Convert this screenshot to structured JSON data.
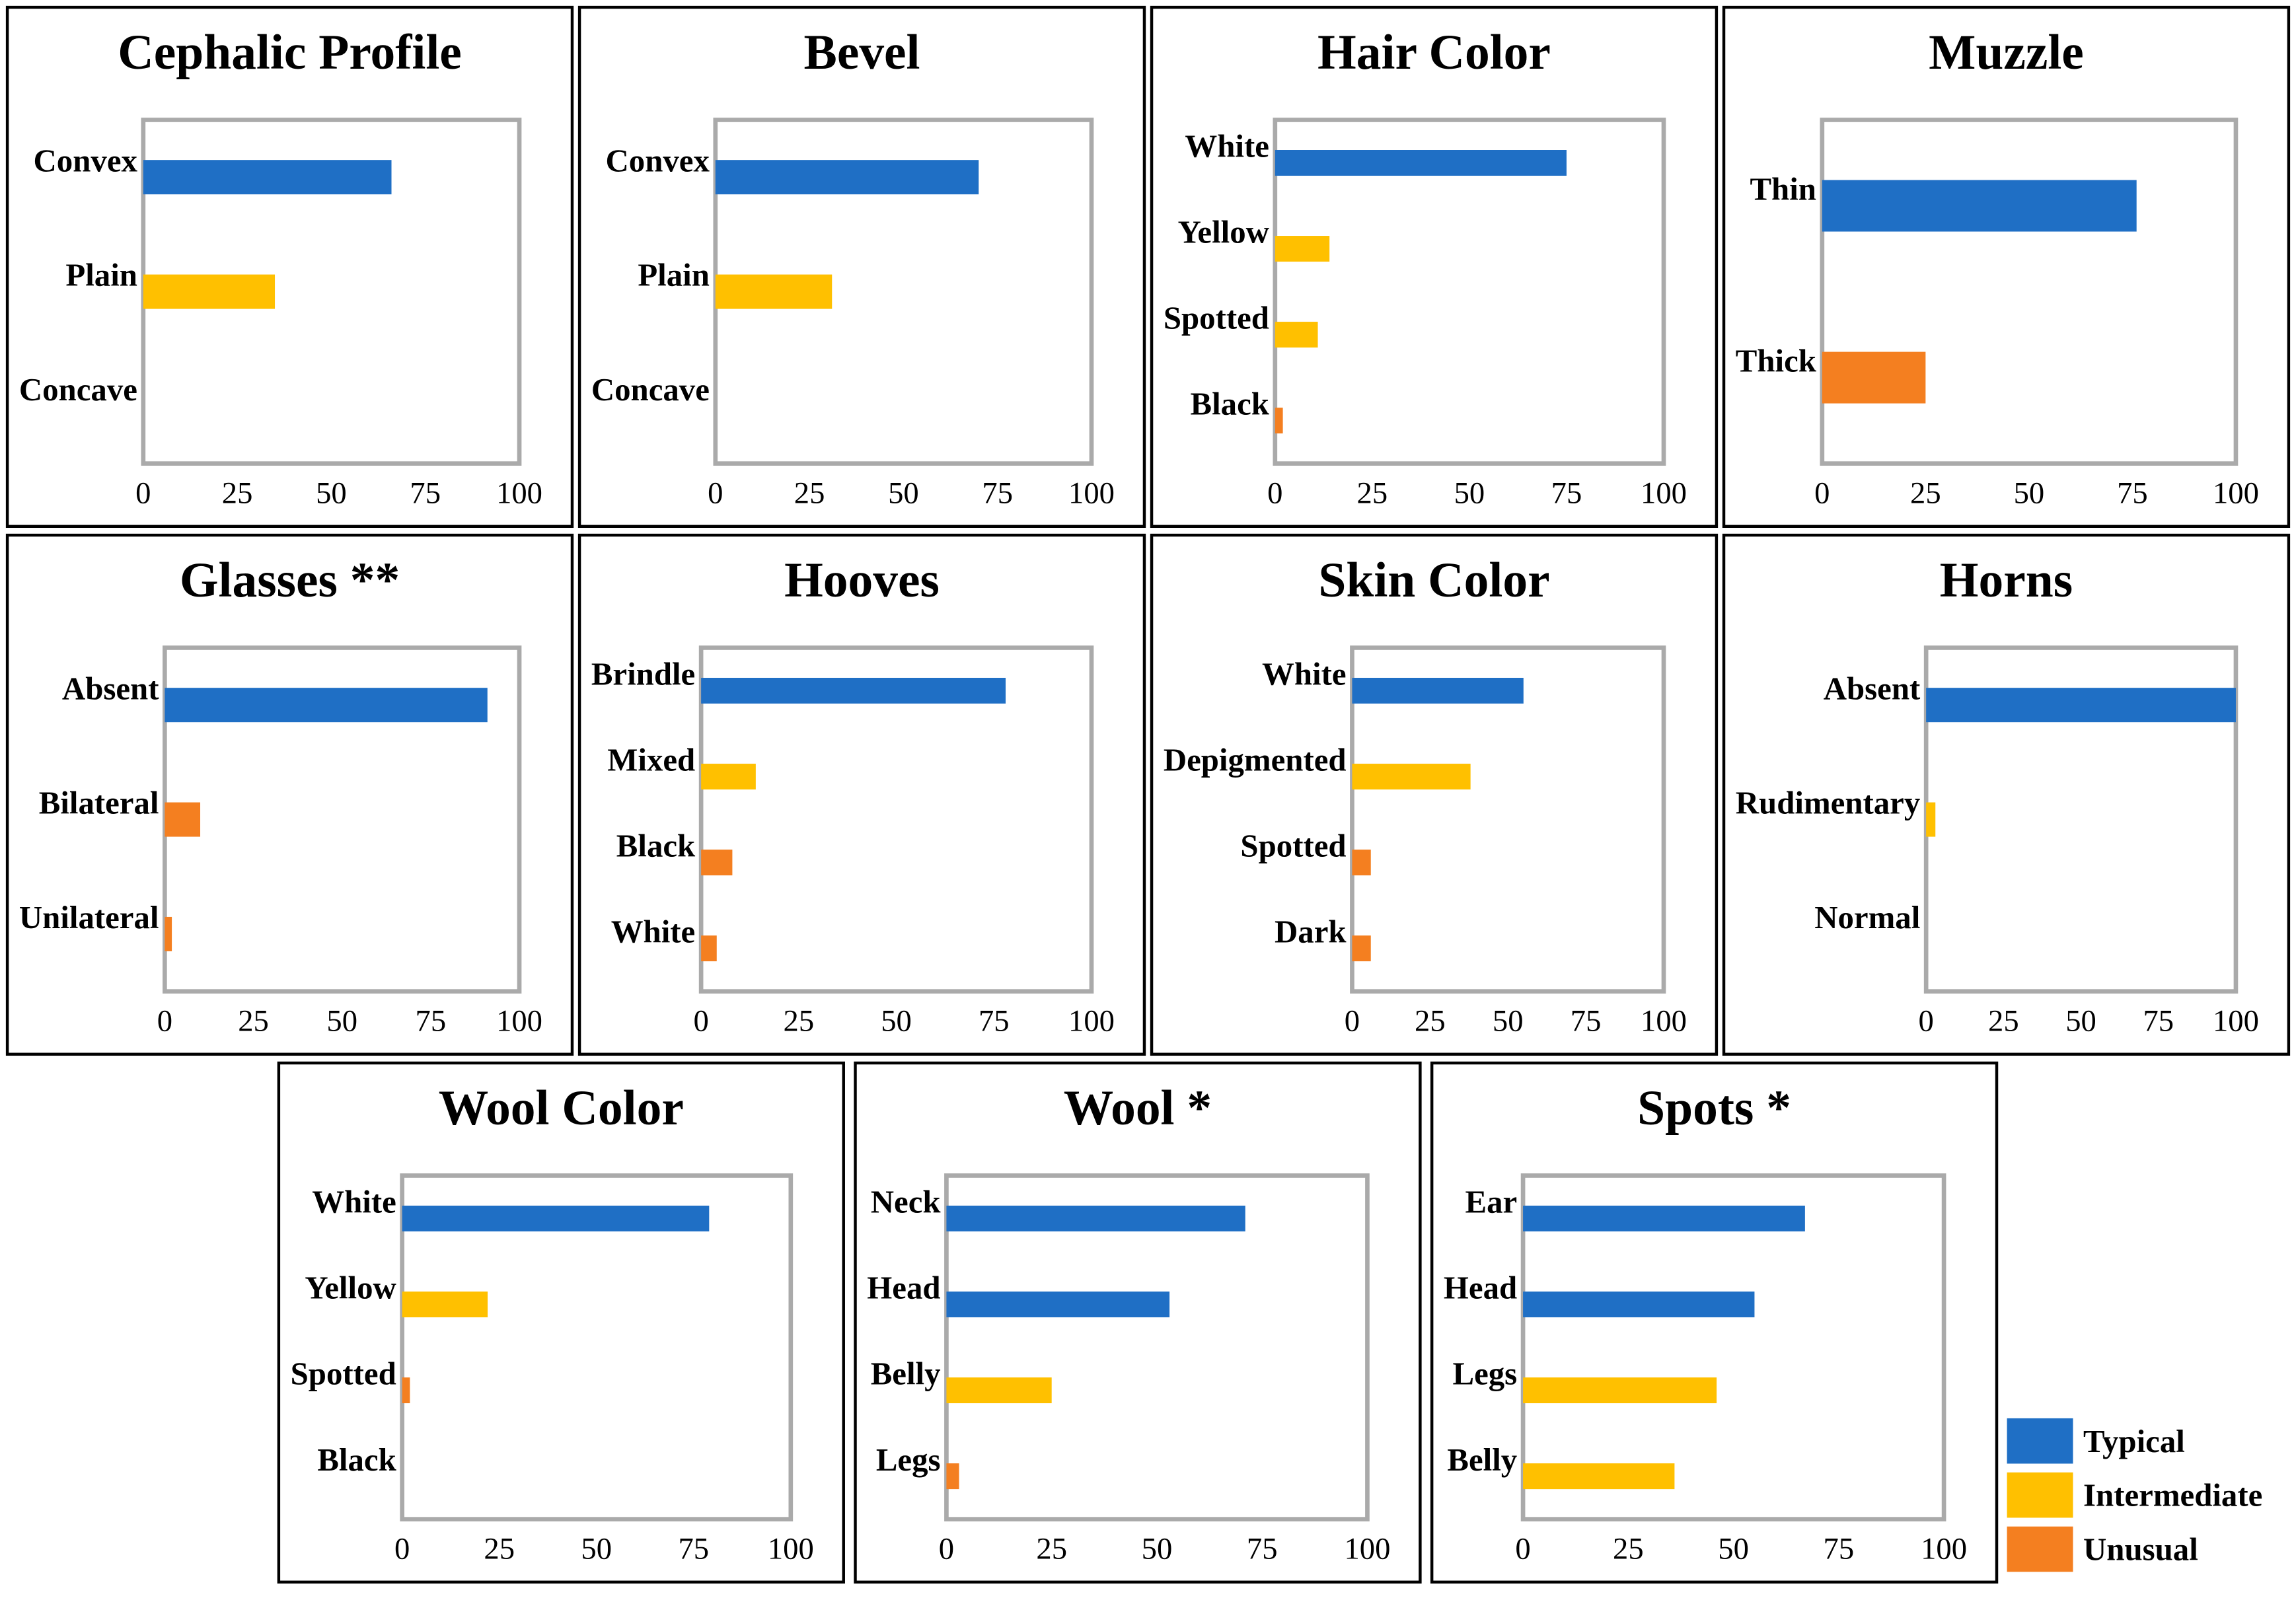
{
  "chart_data": [
    {
      "type": "bar",
      "title": "Cephalic Profile",
      "categories": [
        "Convex",
        "Plain",
        "Concave"
      ],
      "values": [
        66,
        35,
        0
      ],
      "colors": [
        "#1f6fc5",
        "#ffc000",
        "#f47f20"
      ],
      "xlim": [
        0,
        100
      ],
      "xticks": [
        0,
        25,
        50,
        75,
        100
      ]
    },
    {
      "type": "bar",
      "title": "Bevel",
      "categories": [
        "Convex",
        "Plain",
        "Concave"
      ],
      "values": [
        70,
        31,
        0
      ],
      "colors": [
        "#1f6fc5",
        "#ffc000",
        "#f47f20"
      ],
      "xlim": [
        0,
        100
      ],
      "xticks": [
        0,
        25,
        50,
        75,
        100
      ]
    },
    {
      "type": "bar",
      "title": "Hair Color",
      "categories": [
        "White",
        "Yellow",
        "Spotted",
        "Black"
      ],
      "values": [
        75,
        14,
        11,
        2
      ],
      "colors": [
        "#1f6fc5",
        "#ffc000",
        "#ffc000",
        "#f47f20"
      ],
      "xlim": [
        0,
        100
      ],
      "xticks": [
        0,
        25,
        50,
        75,
        100
      ]
    },
    {
      "type": "bar",
      "title": "Muzzle",
      "categories": [
        "Thin",
        "Thick"
      ],
      "values": [
        76,
        25
      ],
      "colors": [
        "#1f6fc5",
        "#f47f20"
      ],
      "xlim": [
        0,
        100
      ],
      "xticks": [
        0,
        25,
        50,
        75,
        100
      ]
    },
    {
      "type": "bar",
      "title": "Glasses **",
      "categories": [
        "Absent",
        "Bilateral",
        "Unilateral"
      ],
      "values": [
        91,
        10,
        2
      ],
      "colors": [
        "#1f6fc5",
        "#f47f20",
        "#f47f20"
      ],
      "xlim": [
        0,
        100
      ],
      "xticks": [
        0,
        25,
        50,
        75,
        100
      ]
    },
    {
      "type": "bar",
      "title": "Hooves",
      "categories": [
        "Brindle",
        "Mixed",
        "Black",
        "White"
      ],
      "values": [
        78,
        14,
        8,
        4
      ],
      "colors": [
        "#1f6fc5",
        "#ffc000",
        "#f47f20",
        "#f47f20"
      ],
      "xlim": [
        0,
        100
      ],
      "xticks": [
        0,
        25,
        50,
        75,
        100
      ]
    },
    {
      "type": "bar",
      "title": "Skin Color",
      "categories": [
        "White",
        "Depigmented",
        "Spotted",
        "Dark"
      ],
      "values": [
        55,
        38,
        6,
        6
      ],
      "colors": [
        "#1f6fc5",
        "#ffc000",
        "#f47f20",
        "#f47f20"
      ],
      "xlim": [
        0,
        100
      ],
      "xticks": [
        0,
        25,
        50,
        75,
        100
      ]
    },
    {
      "type": "bar",
      "title": "Horns",
      "categories": [
        "Absent",
        "Rudimentary",
        "Normal"
      ],
      "values": [
        100,
        3,
        0
      ],
      "colors": [
        "#1f6fc5",
        "#ffc000",
        "#f47f20"
      ],
      "xlim": [
        0,
        100
      ],
      "xticks": [
        0,
        25,
        50,
        75,
        100
      ]
    },
    {
      "type": "bar",
      "title": "Wool Color",
      "categories": [
        "White",
        "Yellow",
        "Spotted",
        "Black"
      ],
      "values": [
        79,
        22,
        2,
        0
      ],
      "colors": [
        "#1f6fc5",
        "#ffc000",
        "#f47f20",
        "#f47f20"
      ],
      "xlim": [
        0,
        100
      ],
      "xticks": [
        0,
        25,
        50,
        75,
        100
      ]
    },
    {
      "type": "bar",
      "title": "Wool *",
      "categories": [
        "Neck",
        "Head",
        "Belly",
        "Legs"
      ],
      "values": [
        71,
        53,
        25,
        3
      ],
      "colors": [
        "#1f6fc5",
        "#1f6fc5",
        "#ffc000",
        "#f47f20"
      ],
      "xlim": [
        0,
        100
      ],
      "xticks": [
        0,
        25,
        50,
        75,
        100
      ]
    },
    {
      "type": "bar",
      "title": "Spots *",
      "categories": [
        "Ear",
        "Head",
        "Legs",
        "Belly"
      ],
      "values": [
        67,
        55,
        46,
        36
      ],
      "colors": [
        "#1f6fc5",
        "#1f6fc5",
        "#ffc000",
        "#ffc000"
      ],
      "xlim": [
        0,
        100
      ],
      "xticks": [
        0,
        25,
        50,
        75,
        100
      ]
    }
  ],
  "legend": {
    "items": [
      {
        "name": "Typical",
        "color": "#1f6fc5"
      },
      {
        "name": "Intermediate",
        "color": "#ffc000"
      },
      {
        "name": "Unusual",
        "color": "#f47f20"
      }
    ]
  }
}
